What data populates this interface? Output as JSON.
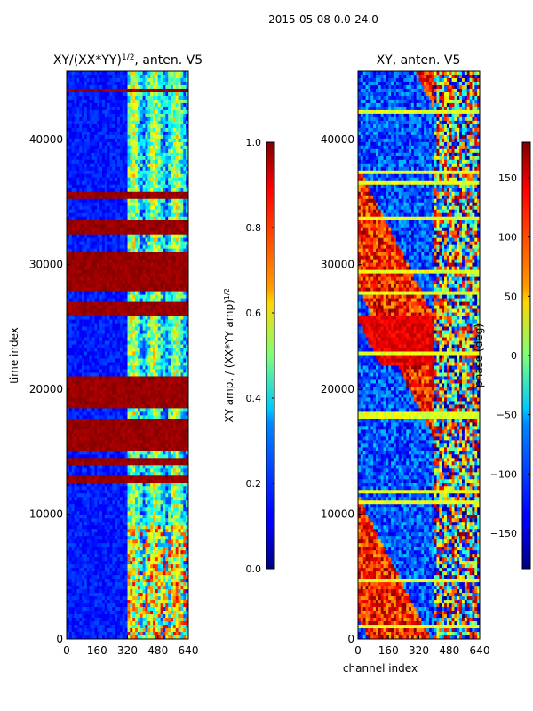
{
  "chart_data": [
    {
      "type": "heatmap",
      "suptitle": "2015-05-08 0.0-24.0",
      "title": "XY/(XX*YY)",
      "title_sup": "1/2",
      "title_suffix": ", anten. V5",
      "xlabel": "",
      "ylabel": "time index",
      "xlim": [
        0,
        640
      ],
      "ylim": [
        0,
        45500
      ],
      "xticks": [
        0,
        160,
        320,
        480,
        640
      ],
      "yticks": [
        0,
        10000,
        20000,
        30000,
        40000
      ],
      "xtick_labels": [
        "0",
        "160",
        "320",
        "480",
        "640"
      ],
      "ytick_labels": [
        "0",
        "10000",
        "20000",
        "30000",
        "40000"
      ],
      "colorbar": {
        "label": "XY amp. / (XX*YY amp)",
        "label_sup": "1/2",
        "range": [
          0.0,
          1.0
        ],
        "ticks": [
          0.0,
          0.2,
          0.4,
          0.6,
          0.8,
          1.0
        ],
        "tick_labels": [
          "0.0",
          "0.2",
          "0.4",
          "0.6",
          "0.8",
          "1.0"
        ],
        "colormap": "jet"
      },
      "high_value_row_bands": [
        [
          12500,
          13200
        ],
        [
          13800,
          14600
        ],
        [
          15000,
          17500
        ],
        [
          18500,
          21000
        ],
        [
          26000,
          27000
        ],
        [
          28000,
          31000
        ],
        [
          32500,
          33500
        ],
        [
          35200,
          35800
        ],
        [
          43800,
          44000
        ]
      ],
      "bright_channel_range": [
        320,
        640
      ]
    },
    {
      "type": "heatmap",
      "title": "XY, anten. V5",
      "xlabel": "channel index",
      "ylabel": "",
      "xlim": [
        0,
        640
      ],
      "ylim": [
        0,
        45500
      ],
      "xticks": [
        0,
        160,
        320,
        480,
        640
      ],
      "yticks": [
        0,
        10000,
        20000,
        30000,
        40000
      ],
      "xtick_labels": [
        "0",
        "160",
        "320",
        "480",
        "640"
      ],
      "ytick_labels": [
        "0",
        "10000",
        "20000",
        "30000",
        "40000"
      ],
      "colorbar": {
        "label": "phase (deg)",
        "range": [
          -180,
          180
        ],
        "ticks": [
          -150,
          -100,
          -50,
          0,
          50,
          100,
          150
        ],
        "tick_labels": [
          "−150",
          "−100",
          "−50",
          "0",
          "50",
          "100",
          "150"
        ],
        "colormap": "jet"
      },
      "bright_channel_range": [
        400,
        640
      ]
    }
  ]
}
